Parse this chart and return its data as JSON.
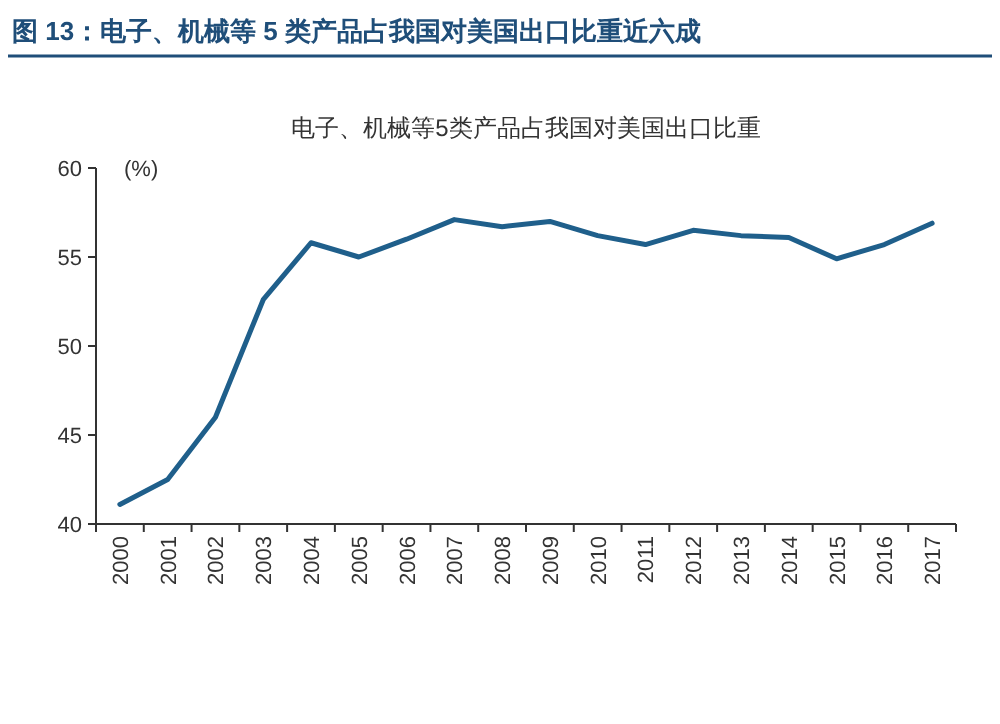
{
  "chart_data": {
    "type": "line",
    "title": "图 13：电子、机械等 5 类产品占我国对美国出口比重近六成",
    "subtitle": "电子、机械等5类产品占我国对美国出口比重",
    "ylabel": "(%)",
    "categories": [
      "2000",
      "2001",
      "2002",
      "2003",
      "2004",
      "2005",
      "2006",
      "2007",
      "2008",
      "2009",
      "2010",
      "2011",
      "2012",
      "2013",
      "2014",
      "2015",
      "2016",
      "2017"
    ],
    "series": [
      {
        "color": "#1f5f8b",
        "values": [
          41.1,
          42.5,
          46.0,
          52.6,
          55.8,
          55.0,
          56.0,
          57.1,
          56.7,
          57.0,
          56.2,
          55.7,
          56.5,
          56.2,
          56.1,
          54.9,
          55.7,
          56.9
        ]
      }
    ],
    "ylim": [
      40,
      60
    ],
    "yticks": [
      40,
      45,
      50,
      55,
      60
    ],
    "grid": false,
    "marker": "none",
    "line_style": "solid"
  }
}
